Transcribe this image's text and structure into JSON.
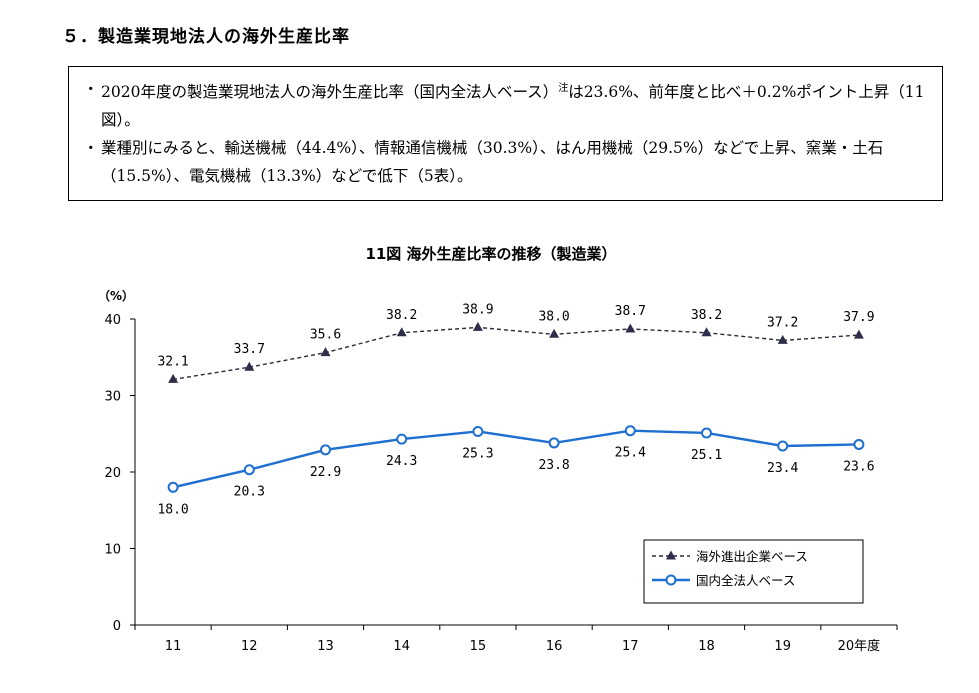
{
  "heading": "５．製造業現地法人の海外生産比率",
  "summary": {
    "bullets": [
      {
        "mark": "・",
        "text": "2020年度の製造業現地法人の海外生産比率（国内全法人ベース）",
        "note": "注",
        "text2": "は23.6%、前年度と比べ＋0.2%ポイント上昇（11図）。"
      },
      {
        "mark": "・",
        "text": "業種別にみると、輸送機械（44.4%）、情報通信機械（30.3%）、はん用機械（29.5%）などで上昇、窯業・土石（15.5%）、電気機械（13.3%）などで低下（5表）。",
        "note": "",
        "text2": ""
      }
    ]
  },
  "chart_data": {
    "type": "line",
    "title": "11図  海外生産比率の推移（製造業）",
    "ylabel": "（%）",
    "xlabel": "",
    "categories": [
      "11",
      "12",
      "13",
      "14",
      "15",
      "16",
      "17",
      "18",
      "19",
      "20年度"
    ],
    "ylim": [
      0,
      40
    ],
    "yticks": [
      "0",
      "10",
      "20",
      "30",
      "40"
    ],
    "series": [
      {
        "name": "海外進出企業ベース",
        "values": [
          32.1,
          33.7,
          35.6,
          38.2,
          38.9,
          38.0,
          38.7,
          38.2,
          37.2,
          37.9
        ],
        "labels": [
          "32.1",
          "33.7",
          "35.6",
          "38.2",
          "38.9",
          "38.0",
          "38.7",
          "38.2",
          "37.2",
          "37.9"
        ],
        "color": "#2b2b3d",
        "style": "dashed",
        "marker": "triangle"
      },
      {
        "name": "国内全法人ベース",
        "values": [
          18.0,
          20.3,
          22.9,
          24.3,
          25.3,
          23.8,
          25.4,
          25.1,
          23.4,
          23.6
        ],
        "labels": [
          "18.0",
          "20.3",
          "22.9",
          "24.3",
          "25.3",
          "23.8",
          "25.4",
          "25.1",
          "23.4",
          "23.6"
        ],
        "color": "#1f6fd1",
        "style": "solid",
        "marker": "circle"
      }
    ],
    "legend_position": "bottom-right",
    "grid": false
  }
}
